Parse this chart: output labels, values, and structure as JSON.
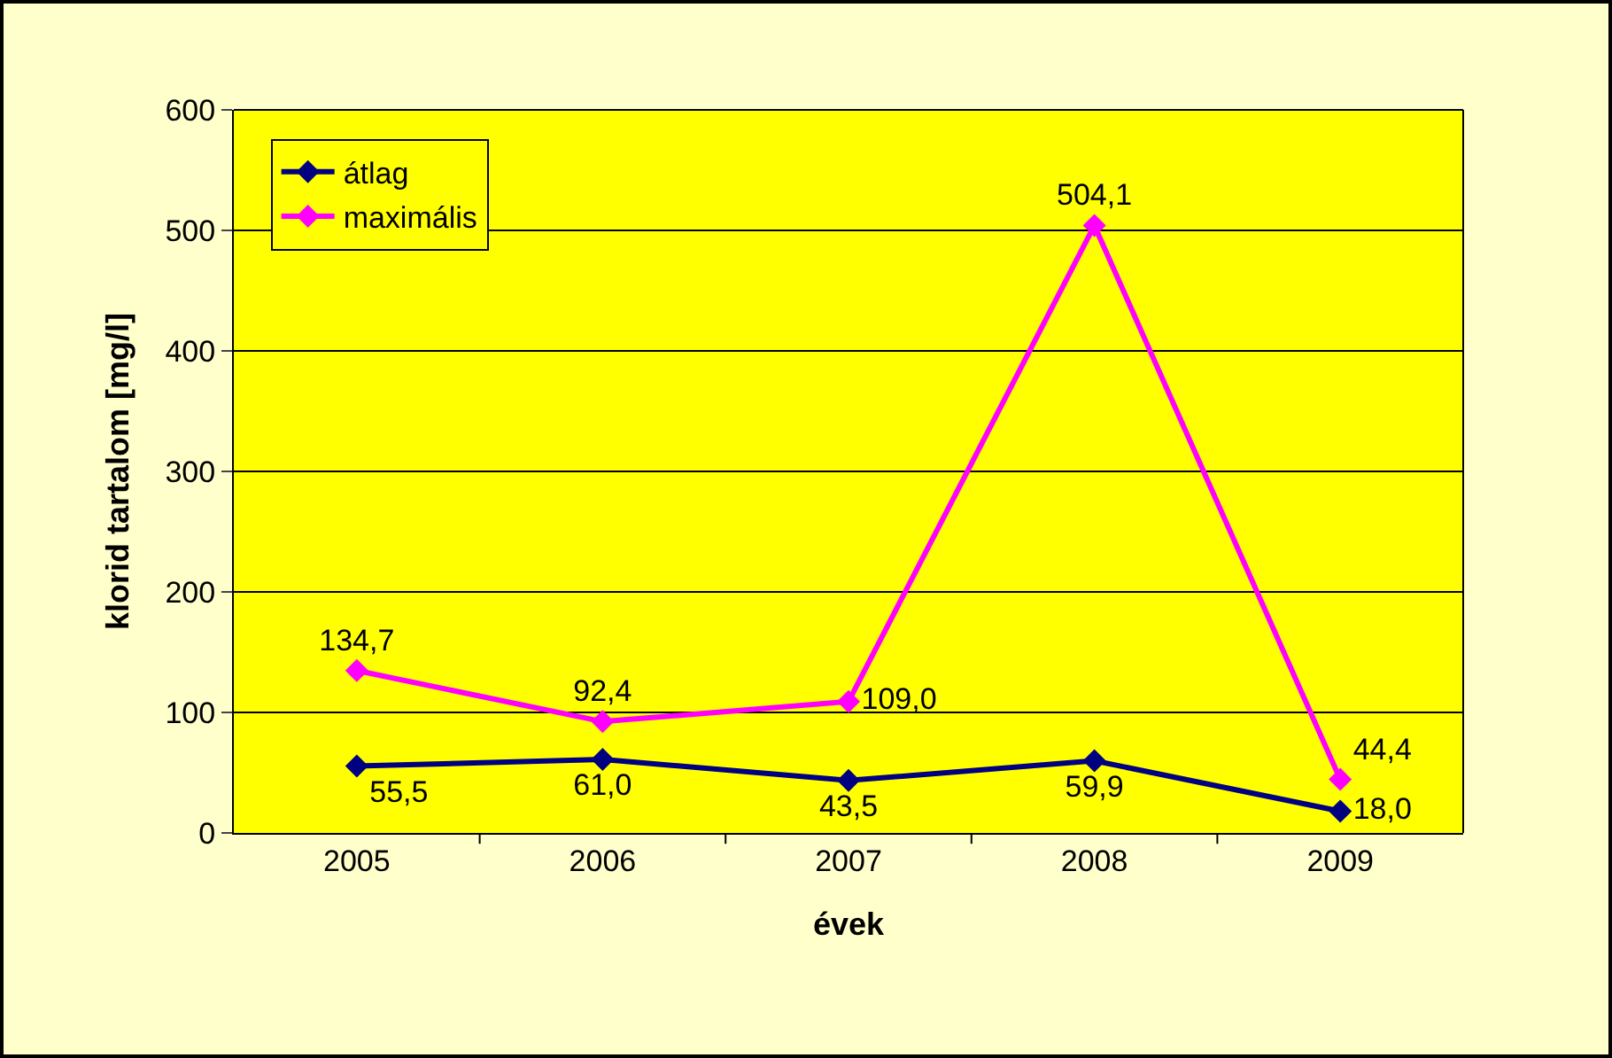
{
  "chart_data": {
    "type": "line",
    "xlabel": "évek",
    "ylabel": "klorid tartalom [mg/l]",
    "categories": [
      "2005",
      "2006",
      "2007",
      "2008",
      "2009"
    ],
    "series": [
      {
        "name": "átlag",
        "color": "#000080",
        "values": [
          55.5,
          61.0,
          43.5,
          59.9,
          18.0
        ],
        "value_labels": [
          "55,5",
          "61,0",
          "43,5",
          "59,9",
          "18,0"
        ]
      },
      {
        "name": "maximális",
        "color": "#ff00ff",
        "values": [
          134.7,
          92.4,
          109.0,
          504.1,
          44.4
        ],
        "value_labels": [
          "134,7",
          "92,4",
          "109,0",
          "504,1",
          "44,4"
        ]
      }
    ],
    "ylim": [
      0,
      600
    ],
    "yticks": [
      0,
      100,
      200,
      300,
      400,
      500,
      600
    ],
    "grid": "y",
    "legend": "top left",
    "marker": "diamond",
    "line_style": "solid"
  }
}
